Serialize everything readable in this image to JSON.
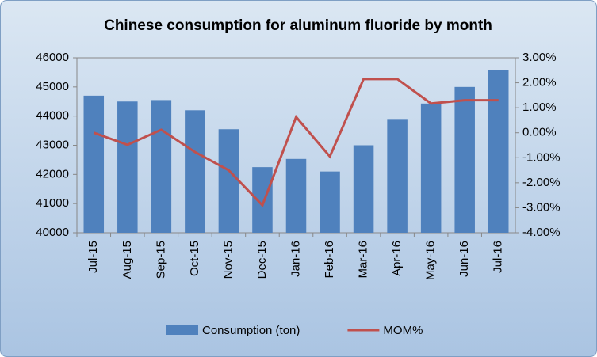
{
  "chart_data": {
    "type": "bar_line",
    "title": "Chinese consumption  for aluminum  fluoride  by month",
    "categories": [
      "Jul-15",
      "Aug-15",
      "Sep-15",
      "Oct-15",
      "Nov-15",
      "Dec-15",
      "Jan-16",
      "Feb-16",
      "Mar-16",
      "Apr-16",
      "May-16",
      "Jun-16",
      "Jul-16"
    ],
    "series": [
      {
        "name": "Consumption (ton)",
        "type": "bar",
        "color": "#4f81bd",
        "values": [
          44700,
          44500,
          44550,
          44200,
          43550,
          42250,
          42530,
          42100,
          43000,
          43900,
          44430,
          45000,
          45580
        ]
      },
      {
        "name": "MOM%",
        "type": "line",
        "axis": "y2",
        "color": "#c0504d",
        "values": [
          0.0,
          -0.48,
          0.12,
          -0.77,
          -1.5,
          -2.9,
          0.63,
          -0.95,
          2.15,
          2.15,
          1.17,
          1.3,
          1.3
        ]
      }
    ],
    "ylim": [
      40000,
      46000
    ],
    "yticks": [
      40000,
      41000,
      42000,
      43000,
      44000,
      45000,
      46000
    ],
    "y2lim": [
      -4,
      3
    ],
    "y2ticks": [
      {
        "value": -4,
        "label": "-4.00%"
      },
      {
        "value": -3,
        "label": "-3.00%"
      },
      {
        "value": -2,
        "label": "-2.00%"
      },
      {
        "value": -1,
        "label": "-1.00%"
      },
      {
        "value": 0,
        "label": "0.00%"
      },
      {
        "value": 1,
        "label": "1.00%"
      },
      {
        "value": 2,
        "label": "2.00%"
      },
      {
        "value": 3,
        "label": "3.00%"
      }
    ]
  }
}
